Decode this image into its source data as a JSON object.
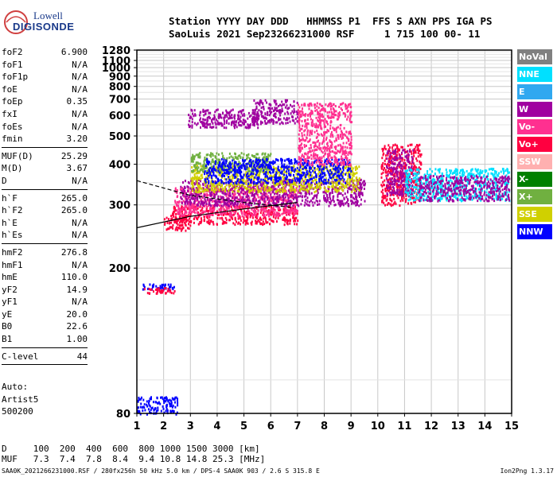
{
  "logo": {
    "line1": "Lowell",
    "line2": "DIGISONDE"
  },
  "header": {
    "labels": [
      "Station",
      "YYYY",
      "DAY",
      "DDD",
      "HHMMSS",
      "P1",
      "FFS",
      "S",
      "AXN",
      "PPS",
      "IGA",
      "PS"
    ],
    "values": [
      "SaoLuis",
      "2021",
      "Sep23",
      "266",
      "231000",
      "RSF",
      "1",
      "715",
      "100",
      "00-",
      "11"
    ]
  },
  "params": {
    "group1": [
      {
        "label": "foF2",
        "value": "6.900"
      },
      {
        "label": "foF1",
        "value": "N/A"
      },
      {
        "label": "foF1p",
        "value": "N/A"
      },
      {
        "label": "foE",
        "value": "N/A"
      },
      {
        "label": "foEp",
        "value": "0.35"
      },
      {
        "label": "fxI",
        "value": "N/A"
      },
      {
        "label": "foEs",
        "value": "N/A"
      },
      {
        "label": "fmin",
        "value": "3.20"
      }
    ],
    "group2": [
      {
        "label": "MUF(D)",
        "value": "25.29"
      },
      {
        "label": "M(D)",
        "value": "3.67"
      },
      {
        "label": "D",
        "value": "N/A"
      }
    ],
    "group3": [
      {
        "label": "h`F",
        "value": "265.0"
      },
      {
        "label": "h`F2",
        "value": "265.0"
      },
      {
        "label": "h`E",
        "value": "N/A"
      },
      {
        "label": "h`Es",
        "value": "N/A"
      }
    ],
    "group4": [
      {
        "label": "hmF2",
        "value": "276.8"
      },
      {
        "label": "hmF1",
        "value": "N/A"
      },
      {
        "label": "hmE",
        "value": "110.0"
      },
      {
        "label": "yF2",
        "value": "14.9"
      },
      {
        "label": "yF1",
        "value": "N/A"
      },
      {
        "label": "yE",
        "value": "20.0"
      },
      {
        "label": "B0",
        "value": "22.6"
      },
      {
        "label": "B1",
        "value": "1.00"
      }
    ],
    "group5": [
      {
        "label": "C-level",
        "value": "44"
      }
    ]
  },
  "auto": {
    "line1": "Auto:",
    "line2": "Artist5",
    "line3": "500200"
  },
  "legend": [
    {
      "label": "NoVal",
      "color": "#808080"
    },
    {
      "label": "NNE",
      "color": "#00e0ff"
    },
    {
      "label": "E",
      "color": "#30a8f0"
    },
    {
      "label": "W",
      "color": "#a000a0"
    },
    {
      "label": "Vo-",
      "color": "#ff3090"
    },
    {
      "label": "Vo+",
      "color": "#ff0040"
    },
    {
      "label": "SSW",
      "color": "#ffb0b0"
    },
    {
      "label": "X-",
      "color": "#008000"
    },
    {
      "label": "X+",
      "color": "#70b040"
    },
    {
      "label": "SSE",
      "color": "#d0d000"
    },
    {
      "label": "NNW",
      "color": "#0000ff"
    }
  ],
  "bottom": {
    "d_label": "D",
    "d_values": [
      "100",
      "200",
      "400",
      "600",
      "800",
      "1000",
      "1500",
      "3000"
    ],
    "d_unit": "[km]",
    "muf_label": "MUF",
    "muf_values": [
      "7.3",
      "7.4",
      "7.8",
      "8.4",
      "9.4",
      "10.8",
      "14.8",
      "25.3"
    ],
    "muf_unit": "[MHz]"
  },
  "footer": {
    "left": "SAA0K_2021266231000.RSF / 280fx256h 50 kHz 5.0 km / DPS-4 SAA0K 903 / 2.6 S 315.8 E",
    "right": "Ion2Png 1.3.17"
  },
  "chart_data": {
    "type": "scatter",
    "title": "",
    "xlabel": "",
    "ylabel": "",
    "xlim": [
      1,
      15
    ],
    "ylim": [
      80,
      1280
    ],
    "y_scale": "reciprocal",
    "grid": true,
    "x_ticks": [
      1,
      2,
      3,
      4,
      5,
      6,
      7,
      8,
      9,
      10,
      11,
      12,
      13,
      14,
      15
    ],
    "y_ticks": [
      80,
      200,
      300,
      400,
      500,
      600,
      700,
      800,
      900,
      1000,
      1100,
      1280
    ],
    "clusters": [
      {
        "x": [
          2.0,
          3.0
        ],
        "y": [
          255,
          285
        ],
        "color": "#ff0040"
      },
      {
        "x": [
          2.3,
          7.0
        ],
        "y": [
          265,
          300
        ],
        "color": "#ff0040"
      },
      {
        "x": [
          2.4,
          7.0
        ],
        "y": [
          280,
          340
        ],
        "color": "#ff3090"
      },
      {
        "x": [
          2.6,
          9.5
        ],
        "y": [
          300,
          360
        ],
        "color": "#a000a0"
      },
      {
        "x": [
          3.0,
          9.3
        ],
        "y": [
          330,
          400
        ],
        "color": "#d0d000"
      },
      {
        "x": [
          3.0,
          6.0
        ],
        "y": [
          380,
          440
        ],
        "color": "#70b040"
      },
      {
        "x": [
          3.5,
          9.0
        ],
        "y": [
          350,
          420
        ],
        "color": "#0000ff"
      },
      {
        "x": [
          2.9,
          5.5
        ],
        "y": [
          540,
          640
        ],
        "color": "#a000a0"
      },
      {
        "x": [
          5.3,
          7.0
        ],
        "y": [
          560,
          700
        ],
        "color": "#a000a0"
      },
      {
        "x": [
          7.0,
          9.0
        ],
        "y": [
          400,
          680
        ],
        "color": "#ff3090"
      },
      {
        "x": [
          10.1,
          11.6
        ],
        "y": [
          300,
          470
        ],
        "color": "#ff0040"
      },
      {
        "x": [
          10.3,
          11.3
        ],
        "y": [
          320,
          450
        ],
        "color": "#a000a0"
      },
      {
        "x": [
          11.0,
          14.9
        ],
        "y": [
          310,
          390
        ],
        "color": "#00e0ff"
      },
      {
        "x": [
          11.5,
          14.9
        ],
        "y": [
          310,
          370
        ],
        "color": "#a000a0"
      },
      {
        "x": [
          1.2,
          2.4
        ],
        "y": [
          176,
          182
        ],
        "color": "#0000ff"
      },
      {
        "x": [
          1.2,
          2.4
        ],
        "y": [
          172,
          178
        ],
        "color": "#ff0040"
      },
      {
        "x": [
          1.0,
          2.5
        ],
        "y": [
          80,
          90
        ],
        "color": "#0000ff"
      }
    ],
    "traces": [
      {
        "x": [
          1.0,
          3.0,
          5.0,
          7.0
        ],
        "y": [
          258,
          278,
          292,
          305
        ],
        "style": "solid"
      },
      {
        "x": [
          1.0,
          3.0,
          5.0,
          6.8
        ],
        "y": [
          355,
          320,
          305,
          295
        ],
        "style": "dashed"
      }
    ]
  }
}
